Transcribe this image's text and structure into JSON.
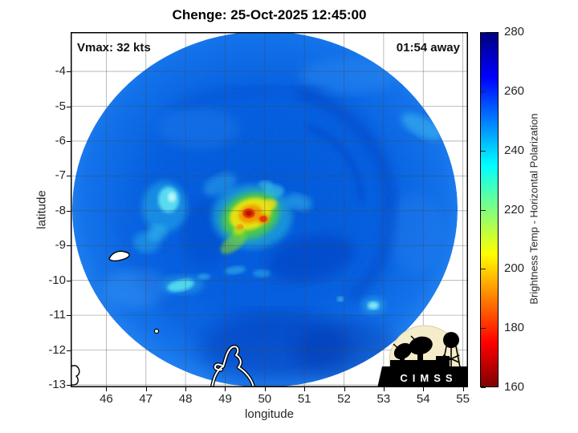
{
  "title": "Chenge: 25-Oct-2025 12:45:00",
  "annotations": {
    "vmax": "Vmax: 32 kts",
    "time_to_obs": "01:54 away"
  },
  "logo": {
    "text": "CIMSS"
  },
  "chart_data": {
    "type": "heatmap",
    "title": "Chenge: 25-Oct-2025 12:45:00",
    "xlabel": "longitude",
    "ylabel": "latitude",
    "x_ticks": [
      46,
      47,
      48,
      49,
      50,
      51,
      52,
      53,
      54,
      55
    ],
    "y_ticks": [
      -4,
      -5,
      -6,
      -7,
      -8,
      -9,
      -10,
      -11,
      -12,
      -13
    ],
    "xlim": [
      45.1,
      55.13
    ],
    "ylim": [
      -13.07,
      -2.87
    ],
    "grid": true,
    "colorbar": {
      "label": "Brightness Temp - Horizontal Polarization",
      "ticks": [
        160,
        180,
        200,
        220,
        240,
        260,
        280
      ],
      "min": 160,
      "max": 280,
      "colormap": "jet reversed (low=dark red, high=dark blue)",
      "stops": [
        {
          "pos": 0.0,
          "color": "#800000"
        },
        {
          "pos": 0.125,
          "color": "#ff0000"
        },
        {
          "pos": 0.25,
          "color": "#ff8000"
        },
        {
          "pos": 0.375,
          "color": "#ffff00"
        },
        {
          "pos": 0.5,
          "color": "#80ff80"
        },
        {
          "pos": 0.625,
          "color": "#00ffff"
        },
        {
          "pos": 0.75,
          "color": "#0080ff"
        },
        {
          "pos": 0.875,
          "color": "#0000ff"
        },
        {
          "pos": 1.0,
          "color": "#000080"
        }
      ]
    },
    "overlay_text": [
      "Vmax: 32 kts",
      "01:54 away"
    ],
    "features": {
      "storm_name": "Chenge",
      "obs_datetime": "25-Oct-2025 12:45:00",
      "vmax_kts": 32,
      "swath_disk": {
        "center_lonlat": [
          50.0,
          -8.05
        ],
        "radius_deg": 4.9,
        "background_temp_K": 258
      },
      "convective_core": {
        "lon": 49.6,
        "lat": -8.1,
        "min_temp_K": 168
      },
      "cold_cloud_patches": [
        {
          "lon": 47.45,
          "lat": -7.8,
          "temp_K": 225
        },
        {
          "lon": 47.85,
          "lat": -10.1,
          "temp_K": 230
        },
        {
          "lon": 52.7,
          "lat": -10.7,
          "temp_K": 238
        }
      ],
      "coastline": "northern tip of Madagascar near (49.4, -12.5)",
      "islands_lonlat": [
        [
          46.4,
          -9.3
        ],
        [
          47.25,
          -11.45
        ],
        [
          45.15,
          -12.7
        ]
      ]
    }
  }
}
